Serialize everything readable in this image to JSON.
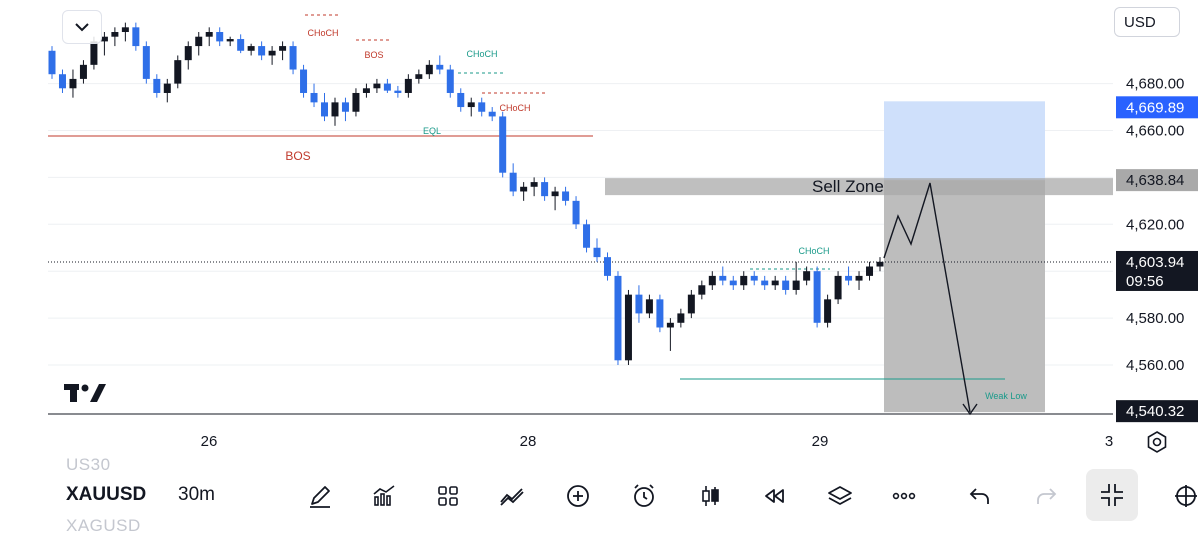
{
  "chart_data": {
    "type": "candlestick",
    "interval": "30m",
    "y_currency": "USD",
    "ylim": [
      4535,
      4695
    ],
    "y_ticks": [
      "4,680.00",
      "4,660.00",
      "4,620.00",
      "4,580.00",
      "4,560.00"
    ],
    "y_tick_values": [
      4680,
      4660,
      4620,
      4580,
      4560
    ],
    "x_ticks": [
      "26",
      "28",
      "29",
      "3"
    ],
    "price_labels": [
      {
        "text": "4,669.89",
        "value": 4669.89,
        "kind": "blue"
      },
      {
        "text": "4,638.84",
        "value": 4638.84,
        "kind": "gray"
      },
      {
        "text": "4,603.94",
        "value": 4603.94,
        "kind": "dark",
        "countdown": "09:56"
      },
      {
        "text": "4,540.32",
        "value": 4540.32,
        "kind": "black"
      }
    ],
    "current_price": 4603.94,
    "annotations": [
      {
        "text": "CHoCH",
        "value": 4686,
        "color": "#c0392b"
      },
      {
        "text": "BOS",
        "value": 4677,
        "color": "#c0392b"
      },
      {
        "text": "CHoCH",
        "value": 4681,
        "color": "#1a9a8a"
      },
      {
        "text": "CHoCH",
        "value": 4665,
        "color": "#c0392b"
      },
      {
        "text": "EQL",
        "value": 4662,
        "color": "#1a9a8a"
      },
      {
        "text": "BOS",
        "value": 4654,
        "color": "#c0392b"
      },
      {
        "text": "CHoCH",
        "value": 4610,
        "color": "#1a9a8a"
      },
      {
        "text": "Weak Low",
        "value": 4543,
        "color": "#1a9a8a"
      }
    ],
    "zones": {
      "sell_zone_label": "Sell Zone",
      "sell_zone_range": [
        4635,
        4638.84
      ],
      "target_top": 4669.89,
      "entry": 4638.84,
      "stop": 4540.32
    },
    "levels": {
      "bos_line": 4658,
      "weak_low": 4555
    },
    "candles": [
      [
        4694,
        4696,
        4682,
        4684
      ],
      [
        4684,
        4686,
        4676,
        4678
      ],
      [
        4678,
        4686,
        4674,
        4682
      ],
      [
        4682,
        4690,
        4680,
        4688
      ],
      [
        4688,
        4700,
        4686,
        4698
      ],
      [
        4698,
        4702,
        4692,
        4700
      ],
      [
        4700,
        4704,
        4696,
        4702
      ],
      [
        4702,
        4706,
        4698,
        4704
      ],
      [
        4704,
        4706,
        4694,
        4696
      ],
      [
        4696,
        4698,
        4680,
        4682
      ],
      [
        4682,
        4684,
        4674,
        4676
      ],
      [
        4676,
        4682,
        4672,
        4680
      ],
      [
        4680,
        4692,
        4678,
        4690
      ],
      [
        4690,
        4698,
        4686,
        4696
      ],
      [
        4696,
        4702,
        4692,
        4700
      ],
      [
        4700,
        4704,
        4696,
        4702
      ],
      [
        4702,
        4704,
        4696,
        4698
      ],
      [
        4698,
        4700,
        4696,
        4699
      ],
      [
        4699,
        4701,
        4693,
        4694
      ],
      [
        4694,
        4697,
        4692,
        4696
      ],
      [
        4696,
        4698,
        4690,
        4692
      ],
      [
        4692,
        4696,
        4688,
        4694
      ],
      [
        4694,
        4698,
        4690,
        4696
      ],
      [
        4696,
        4698,
        4684,
        4686
      ],
      [
        4686,
        4688,
        4674,
        4676
      ],
      [
        4676,
        4680,
        4670,
        4672
      ],
      [
        4672,
        4676,
        4664,
        4666
      ],
      [
        4666,
        4674,
        4662,
        4672
      ],
      [
        4672,
        4674,
        4664,
        4668
      ],
      [
        4668,
        4678,
        4666,
        4676
      ],
      [
        4676,
        4680,
        4674,
        4678
      ],
      [
        4678,
        4682,
        4676,
        4680
      ],
      [
        4680,
        4682,
        4676,
        4677
      ],
      [
        4677,
        4679,
        4674,
        4676
      ],
      [
        4676,
        4684,
        4674,
        4682
      ],
      [
        4682,
        4686,
        4680,
        4684
      ],
      [
        4684,
        4690,
        4682,
        4688
      ],
      [
        4688,
        4692,
        4684,
        4686
      ],
      [
        4686,
        4688,
        4674,
        4676
      ],
      [
        4676,
        4678,
        4668,
        4670
      ],
      [
        4670,
        4674,
        4666,
        4672
      ],
      [
        4672,
        4674,
        4666,
        4668
      ],
      [
        4668,
        4670,
        4664,
        4666
      ],
      [
        4666,
        4668,
        4640,
        4642
      ],
      [
        4642,
        4646,
        4632,
        4634
      ],
      [
        4634,
        4638,
        4630,
        4636
      ],
      [
        4636,
        4640,
        4632,
        4638
      ],
      [
        4638,
        4640,
        4630,
        4632
      ],
      [
        4632,
        4636,
        4626,
        4634
      ],
      [
        4634,
        4636,
        4628,
        4630
      ],
      [
        4630,
        4632,
        4618,
        4620
      ],
      [
        4620,
        4622,
        4608,
        4610
      ],
      [
        4610,
        4614,
        4604,
        4606
      ],
      [
        4606,
        4608,
        4596,
        4598
      ],
      [
        4598,
        4600,
        4560,
        4562
      ],
      [
        4562,
        4592,
        4560,
        4590
      ],
      [
        4590,
        4594,
        4578,
        4582
      ],
      [
        4582,
        4590,
        4580,
        4588
      ],
      [
        4588,
        4590,
        4574,
        4576
      ],
      [
        4576,
        4580,
        4566,
        4578
      ],
      [
        4578,
        4584,
        4576,
        4582
      ],
      [
        4582,
        4592,
        4580,
        4590
      ],
      [
        4590,
        4596,
        4588,
        4594
      ],
      [
        4594,
        4600,
        4592,
        4598
      ],
      [
        4598,
        4602,
        4594,
        4596
      ],
      [
        4596,
        4598,
        4592,
        4594
      ],
      [
        4594,
        4600,
        4592,
        4598
      ],
      [
        4598,
        4600,
        4594,
        4596
      ],
      [
        4596,
        4598,
        4592,
        4594
      ],
      [
        4594,
        4598,
        4592,
        4596
      ],
      [
        4596,
        4598,
        4590,
        4592
      ],
      [
        4592,
        4604,
        4590,
        4596
      ],
      [
        4596,
        4602,
        4594,
        4600
      ],
      [
        4600,
        4602,
        4576,
        4578
      ],
      [
        4578,
        4590,
        4576,
        4588
      ],
      [
        4588,
        4600,
        4586,
        4598
      ],
      [
        4598,
        4602,
        4594,
        4596
      ],
      [
        4596,
        4600,
        4592,
        4598
      ],
      [
        4598,
        4604,
        4596,
        4602
      ],
      [
        4602,
        4606,
        4600,
        4604
      ]
    ]
  },
  "ui": {
    "currency": "USD",
    "symbol": "XAUUSD",
    "symbol_above": "US30",
    "symbol_below": "XAGUSD",
    "interval": "30m"
  },
  "icons": {
    "collapse": "chevron-down-icon",
    "logo": "tradingview-logo",
    "settings": "settings-icon",
    "toolbar": [
      "draw-icon",
      "indicators-icon",
      "layout-grid-icon",
      "compare-icon",
      "add-icon",
      "alert-icon",
      "bar-style-icon",
      "replay-icon",
      "layers-icon",
      "more-icon",
      "undo-icon",
      "redo-icon",
      "fullscreen-exit-icon",
      "crosshair-icon"
    ]
  }
}
